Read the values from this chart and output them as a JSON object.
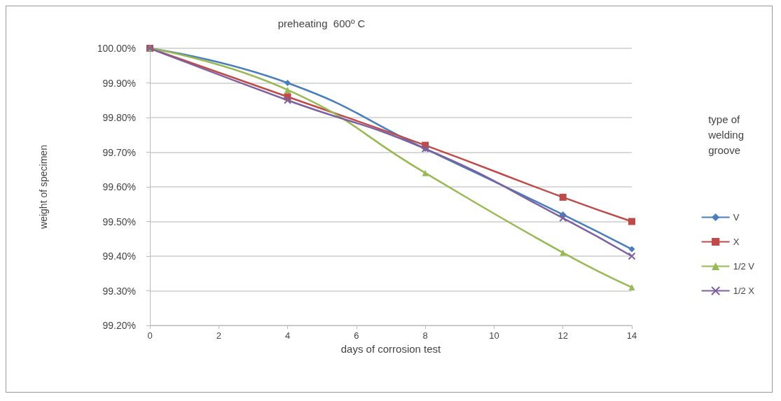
{
  "chart_data": {
    "type": "line",
    "title": "preheating  600º C",
    "xlabel": "days of corrosion test",
    "ylabel": "weight of specimen",
    "legend_title": "type of\nwelding\ngroove",
    "x": [
      0,
      4,
      8,
      12,
      14
    ],
    "series": [
      {
        "name": "V",
        "color": "#4a7ebb",
        "marker": "diamond",
        "values": [
          100,
          99.9,
          99.71,
          99.52,
          99.42
        ]
      },
      {
        "name": "X",
        "color": "#be4b48",
        "marker": "square",
        "values": [
          100,
          99.86,
          99.72,
          99.57,
          99.5
        ]
      },
      {
        "name": "1/2 V",
        "color": "#98b954",
        "marker": "triangle",
        "values": [
          100,
          99.88,
          99.64,
          99.41,
          99.31
        ]
      },
      {
        "name": "1/2 X",
        "color": "#7d60a0",
        "marker": "cross",
        "values": [
          100,
          99.85,
          99.71,
          99.51,
          99.4
        ]
      }
    ],
    "xlim": [
      0,
      14
    ],
    "xticks": [
      0,
      2,
      4,
      6,
      8,
      10,
      12,
      14
    ],
    "ylim": [
      99.2,
      100
    ],
    "yticks": [
      {
        "value": 99.2,
        "label": "99.20%"
      },
      {
        "value": 99.3,
        "label": "99.30%"
      },
      {
        "value": 99.4,
        "label": "99.40%"
      },
      {
        "value": 99.5,
        "label": "99.50%"
      },
      {
        "value": 99.6,
        "label": "99.60%"
      },
      {
        "value": 99.7,
        "label": "99.70%"
      },
      {
        "value": 99.8,
        "label": "99.80%"
      },
      {
        "value": 99.9,
        "label": "99.90%"
      },
      {
        "value": 100,
        "label": "100.00%"
      }
    ],
    "grid": "y",
    "legend": "right"
  }
}
